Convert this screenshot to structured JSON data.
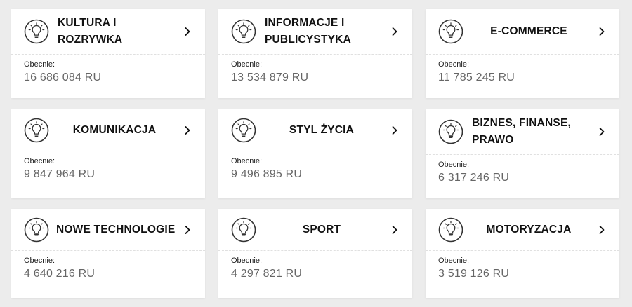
{
  "cards": [
    {
      "title": "KULTURA I ROZRYWKA",
      "label": "Obecnie:",
      "value": "16 686 084 RU"
    },
    {
      "title": "INFORMACJE I PUBLICYSTYKA",
      "label": "Obecnie:",
      "value": "13 534 879 RU"
    },
    {
      "title": "E-COMMERCE",
      "label": "Obecnie:",
      "value": "11 785 245 RU"
    },
    {
      "title": "KOMUNIKACJA",
      "label": "Obecnie:",
      "value": "9 847 964 RU"
    },
    {
      "title": "STYL ŻYCIA",
      "label": "Obecnie:",
      "value": "9 496 895 RU"
    },
    {
      "title": "BIZNES, FINANSE, PRAWO",
      "label": "Obecnie:",
      "value": "6 317 246 RU"
    },
    {
      "title": "NOWE TECHNOLOGIE",
      "label": "Obecnie:",
      "value": "4 640 216 RU"
    },
    {
      "title": "SPORT",
      "label": "Obecnie:",
      "value": "4 297 821 RU"
    },
    {
      "title": "MOTORYZACJA",
      "label": "Obecnie:",
      "value": "3 519 126 RU"
    }
  ],
  "icons": {
    "card_icon": "lightbulb-icon",
    "card_arrow": "chevron-right-icon"
  },
  "colors": {
    "background": "#ececec",
    "card": "#ffffff",
    "title": "#111111",
    "value": "#666666"
  }
}
